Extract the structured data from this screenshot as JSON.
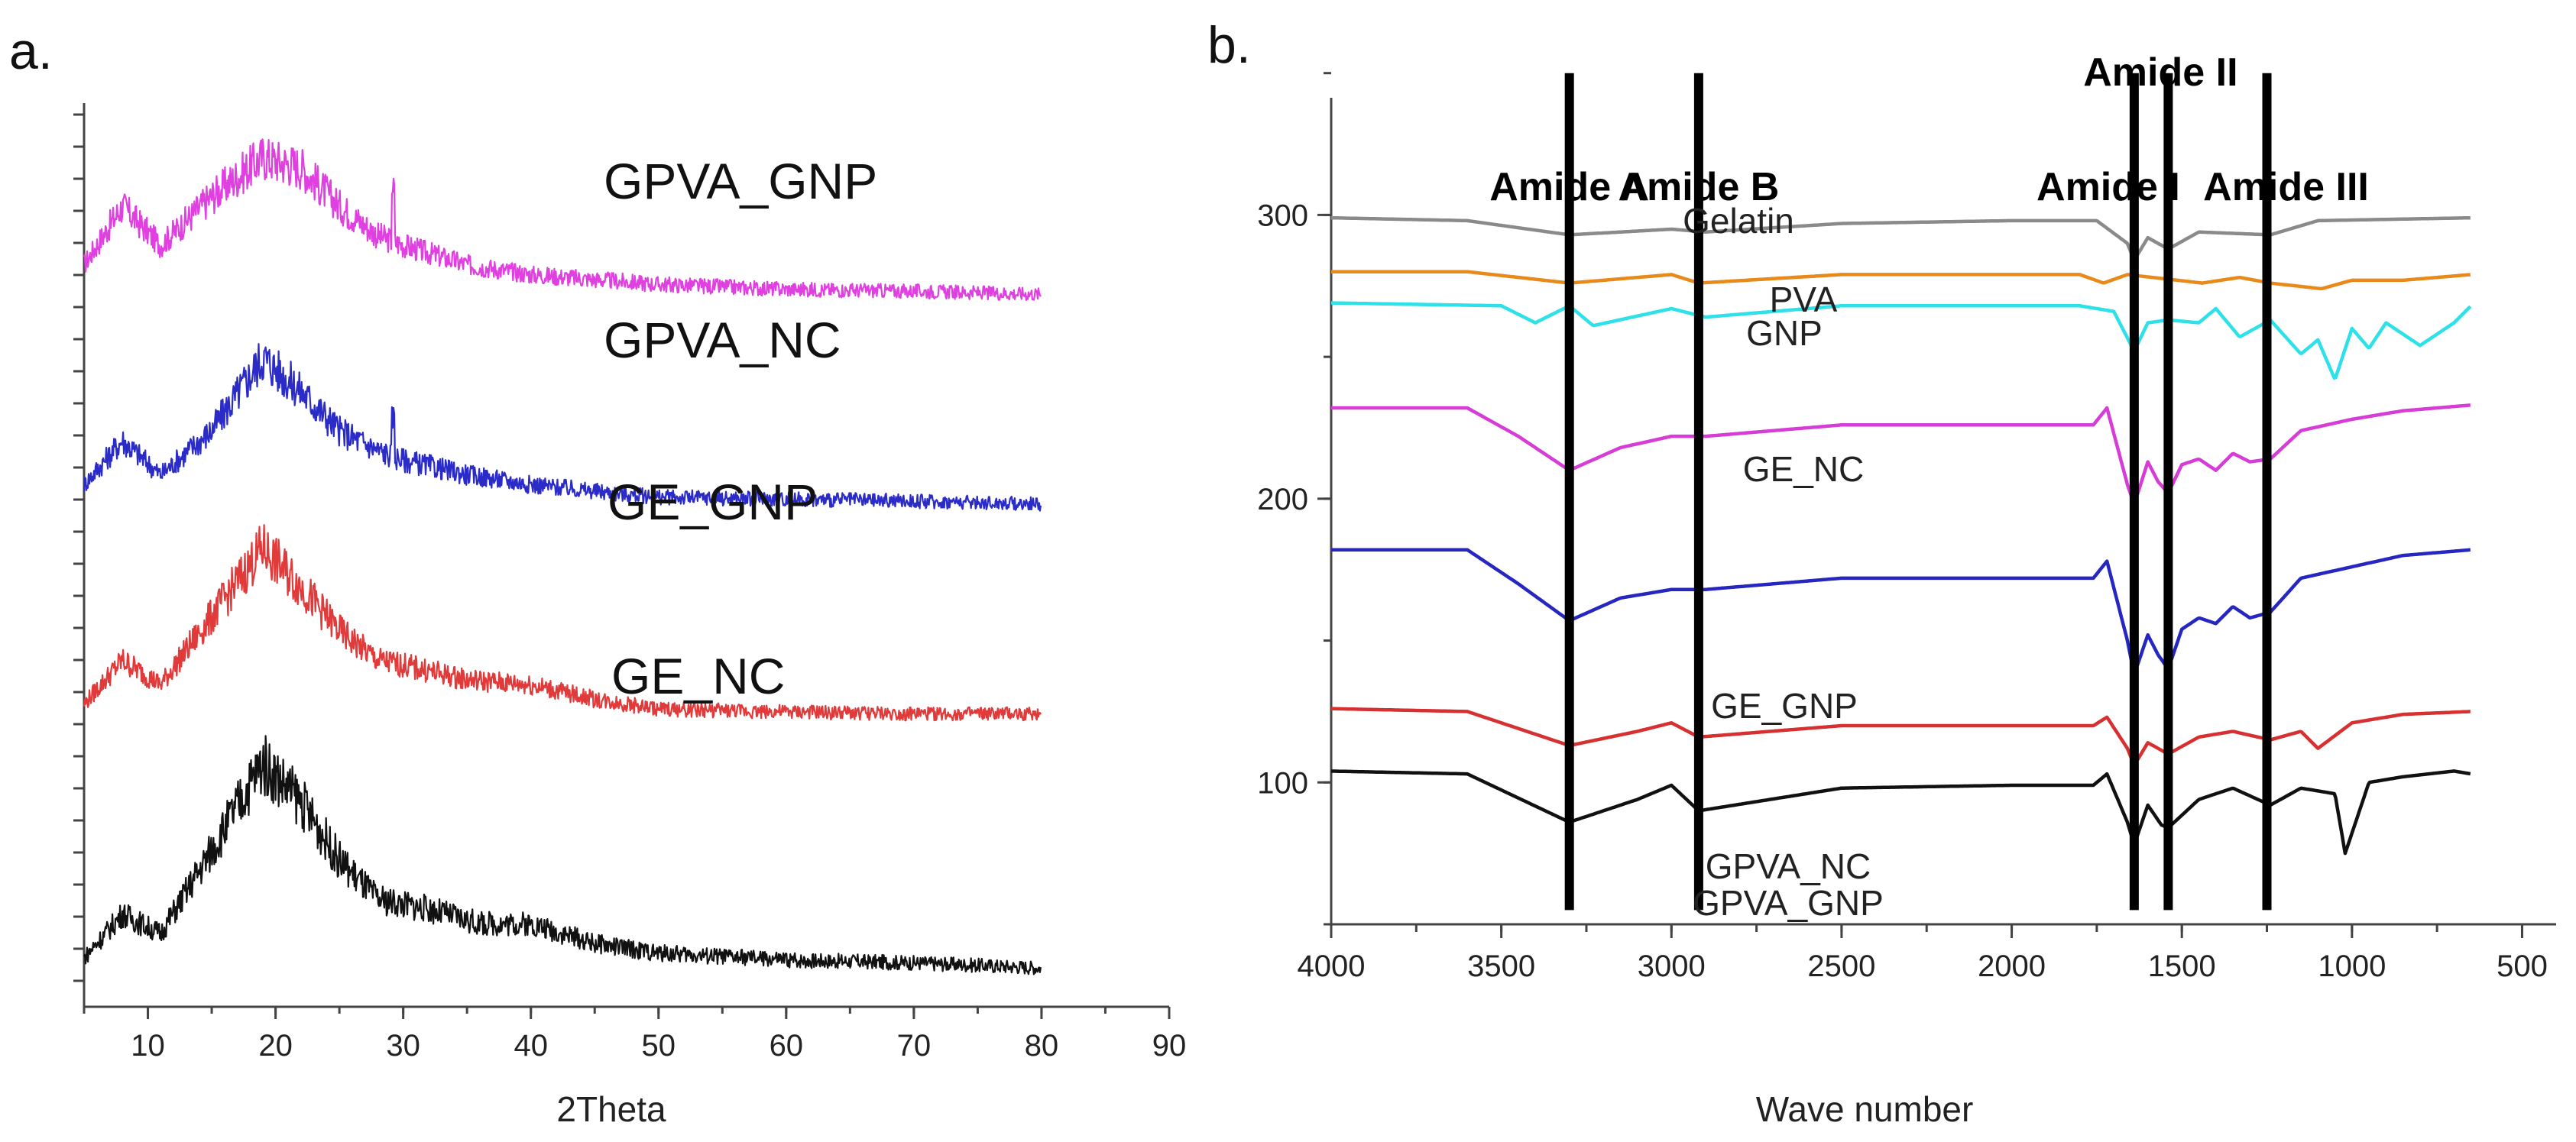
{
  "chart_data": [
    {
      "type": "line",
      "panel_label": "a.",
      "xlabel": "2Theta",
      "ylabel": "",
      "xlim": [
        5,
        90
      ],
      "xticks": [
        "10",
        "20",
        "30",
        "40",
        "50",
        "60",
        "70",
        "80",
        "90"
      ],
      "y_tick_labels_shown": false,
      "grid": false,
      "series": [
        {
          "name": "GPVA_GNP",
          "color": "#e040e0",
          "points": [
            [
              5,
              0.76
            ],
            [
              8,
              0.82
            ],
            [
              11,
              0.78
            ],
            [
              15,
              0.83
            ],
            [
              19,
              0.87
            ],
            [
              22,
              0.86
            ],
            [
              25,
              0.82
            ],
            [
              28,
              0.79
            ],
            [
              30,
              0.78
            ],
            [
              35,
              0.76
            ],
            [
              40,
              0.75
            ],
            [
              45,
              0.745
            ],
            [
              50,
              0.74
            ],
            [
              60,
              0.735
            ],
            [
              70,
              0.733
            ],
            [
              80,
              0.73
            ]
          ]
        },
        {
          "name": "GPVA_NC",
          "color": "#2b2bc8",
          "points": [
            [
              5,
              0.535
            ],
            [
              8,
              0.58
            ],
            [
              11,
              0.545
            ],
            [
              15,
              0.59
            ],
            [
              19,
              0.665
            ],
            [
              22,
              0.63
            ],
            [
              25,
              0.59
            ],
            [
              28,
              0.57
            ],
            [
              30,
              0.56
            ],
            [
              35,
              0.545
            ],
            [
              40,
              0.535
            ],
            [
              45,
              0.528
            ],
            [
              50,
              0.522
            ],
            [
              60,
              0.52
            ],
            [
              70,
              0.518
            ],
            [
              80,
              0.515
            ]
          ]
        },
        {
          "name": "GE_GNP",
          "color": "#e03a3a",
          "points": [
            [
              5,
              0.31
            ],
            [
              8,
              0.355
            ],
            [
              11,
              0.33
            ],
            [
              15,
              0.4
            ],
            [
              19,
              0.47
            ],
            [
              22,
              0.43
            ],
            [
              25,
              0.385
            ],
            [
              28,
              0.355
            ],
            [
              30,
              0.35
            ],
            [
              35,
              0.335
            ],
            [
              40,
              0.33
            ],
            [
              45,
              0.315
            ],
            [
              50,
              0.305
            ],
            [
              60,
              0.302
            ],
            [
              70,
              0.3
            ],
            [
              80,
              0.3
            ]
          ]
        },
        {
          "name": "GE_NC",
          "color": "#111111",
          "points": [
            [
              5,
              0.05
            ],
            [
              8,
              0.095
            ],
            [
              11,
              0.075
            ],
            [
              15,
              0.16
            ],
            [
              19,
              0.25
            ],
            [
              22,
              0.21
            ],
            [
              25,
              0.15
            ],
            [
              28,
              0.11
            ],
            [
              32,
              0.1
            ],
            [
              36,
              0.085
            ],
            [
              40,
              0.085
            ],
            [
              45,
              0.065
            ],
            [
              50,
              0.055
            ],
            [
              60,
              0.048
            ],
            [
              70,
              0.045
            ],
            [
              80,
              0.04
            ]
          ]
        }
      ]
    },
    {
      "type": "line",
      "panel_label": "b.",
      "xlabel": "Wave number",
      "ylabel": "",
      "xlim": [
        4000,
        400
      ],
      "ylim": [
        50,
        365
      ],
      "xticks": [
        "4000",
        "3500",
        "3000",
        "2500",
        "2000",
        "1500",
        "1000",
        "500"
      ],
      "yticks": [
        "100",
        "200",
        "300"
      ],
      "grid": false,
      "annotations": [
        {
          "label": "Amide A",
          "x": 3300
        },
        {
          "label": "Amide B",
          "x": 2920
        },
        {
          "label": "Amide I",
          "x": 1640
        },
        {
          "label": "Amide II",
          "x": 1540
        },
        {
          "label": "Amide III",
          "x": 1250
        }
      ],
      "series": [
        {
          "name": "Gelatin",
          "color": "#8a8a8a",
          "points": [
            [
              4000,
              299
            ],
            [
              3600,
              298
            ],
            [
              3300,
              293
            ],
            [
              3000,
              295
            ],
            [
              2900,
              294
            ],
            [
              2500,
              297
            ],
            [
              2000,
              298
            ],
            [
              1750,
              298
            ],
            [
              1660,
              290
            ],
            [
              1640,
              284
            ],
            [
              1600,
              292
            ],
            [
              1540,
              288
            ],
            [
              1450,
              294
            ],
            [
              1240,
              293
            ],
            [
              1100,
              298
            ],
            [
              650,
              299
            ]
          ]
        },
        {
          "name": "PVA",
          "color": "#e88a1a",
          "points": [
            [
              4000,
              280
            ],
            [
              3600,
              280
            ],
            [
              3300,
              276
            ],
            [
              3000,
              279
            ],
            [
              2920,
              276
            ],
            [
              2500,
              279
            ],
            [
              1800,
              279
            ],
            [
              1730,
              276
            ],
            [
              1660,
              279
            ],
            [
              1440,
              276
            ],
            [
              1330,
              278
            ],
            [
              1240,
              276
            ],
            [
              1090,
              274
            ],
            [
              1000,
              277
            ],
            [
              850,
              277
            ],
            [
              650,
              279
            ]
          ]
        },
        {
          "name": "GNP",
          "color": "#2ee0e8",
          "points": [
            [
              4000,
              269
            ],
            [
              3500,
              268
            ],
            [
              3400,
              262
            ],
            [
              3300,
              268
            ],
            [
              3230,
              261
            ],
            [
              3000,
              267
            ],
            [
              2900,
              264
            ],
            [
              2500,
              268
            ],
            [
              1800,
              268
            ],
            [
              1700,
              266
            ],
            [
              1640,
              252
            ],
            [
              1600,
              262
            ],
            [
              1540,
              263
            ],
            [
              1450,
              262
            ],
            [
              1400,
              267
            ],
            [
              1330,
              257
            ],
            [
              1240,
              263
            ],
            [
              1150,
              251
            ],
            [
              1100,
              256
            ],
            [
              1050,
              242
            ],
            [
              1000,
              260
            ],
            [
              950,
              253
            ],
            [
              900,
              262
            ],
            [
              800,
              254
            ],
            [
              700,
              262
            ],
            [
              650,
              268
            ]
          ]
        },
        {
          "name": "GE_NC",
          "color": "#d63cd6",
          "points": [
            [
              4000,
              232
            ],
            [
              3600,
              232
            ],
            [
              3450,
              222
            ],
            [
              3300,
              210
            ],
            [
              3150,
              218
            ],
            [
              3000,
              222
            ],
            [
              2900,
              222
            ],
            [
              2500,
              226
            ],
            [
              2000,
              226
            ],
            [
              1760,
              226
            ],
            [
              1720,
              232
            ],
            [
              1660,
              205
            ],
            [
              1640,
              198
            ],
            [
              1600,
              213
            ],
            [
              1570,
              206
            ],
            [
              1540,
              202
            ],
            [
              1500,
              212
            ],
            [
              1450,
              214
            ],
            [
              1400,
              210
            ],
            [
              1350,
              216
            ],
            [
              1300,
              213
            ],
            [
              1240,
              214
            ],
            [
              1150,
              224
            ],
            [
              1000,
              228
            ],
            [
              850,
              231
            ],
            [
              650,
              233
            ]
          ]
        },
        {
          "name": "GE_GNP",
          "color": "#2626c0",
          "points": [
            [
              4000,
              182
            ],
            [
              3600,
              182
            ],
            [
              3450,
              170
            ],
            [
              3300,
              157
            ],
            [
              3150,
              165
            ],
            [
              3000,
              168
            ],
            [
              2900,
              168
            ],
            [
              2500,
              172
            ],
            [
              2000,
              172
            ],
            [
              1760,
              172
            ],
            [
              1720,
              178
            ],
            [
              1660,
              150
            ],
            [
              1640,
              138
            ],
            [
              1600,
              152
            ],
            [
              1570,
              145
            ],
            [
              1540,
              140
            ],
            [
              1500,
              154
            ],
            [
              1450,
              158
            ],
            [
              1400,
              156
            ],
            [
              1350,
              162
            ],
            [
              1300,
              158
            ],
            [
              1240,
              160
            ],
            [
              1150,
              172
            ],
            [
              1000,
              176
            ],
            [
              850,
              180
            ],
            [
              650,
              182
            ]
          ]
        },
        {
          "name": "GPVA_NC",
          "color": "#d63030",
          "points": [
            [
              4000,
              126
            ],
            [
              3600,
              125
            ],
            [
              3300,
              113
            ],
            [
              3100,
              118
            ],
            [
              3000,
              121
            ],
            [
              2920,
              116
            ],
            [
              2500,
              120
            ],
            [
              2000,
              120
            ],
            [
              1760,
              120
            ],
            [
              1720,
              123
            ],
            [
              1660,
              112
            ],
            [
              1640,
              106
            ],
            [
              1600,
              114
            ],
            [
              1540,
              110
            ],
            [
              1450,
              116
            ],
            [
              1350,
              118
            ],
            [
              1240,
              115
            ],
            [
              1150,
              118
            ],
            [
              1100,
              112
            ],
            [
              1000,
              121
            ],
            [
              850,
              124
            ],
            [
              650,
              125
            ]
          ]
        },
        {
          "name": "GPVA_GNP",
          "color": "#111111",
          "points": [
            [
              4000,
              104
            ],
            [
              3600,
              103
            ],
            [
              3300,
              86
            ],
            [
              3100,
              94
            ],
            [
              3000,
              99
            ],
            [
              2920,
              90
            ],
            [
              2500,
              98
            ],
            [
              2000,
              99
            ],
            [
              1760,
              99
            ],
            [
              1720,
              103
            ],
            [
              1660,
              86
            ],
            [
              1640,
              78
            ],
            [
              1600,
              92
            ],
            [
              1560,
              85
            ],
            [
              1540,
              84
            ],
            [
              1450,
              94
            ],
            [
              1350,
              98
            ],
            [
              1240,
              92
            ],
            [
              1150,
              98
            ],
            [
              1050,
              96
            ],
            [
              1020,
              75
            ],
            [
              950,
              100
            ],
            [
              850,
              102
            ],
            [
              700,
              104
            ],
            [
              650,
              103
            ]
          ]
        }
      ]
    }
  ]
}
